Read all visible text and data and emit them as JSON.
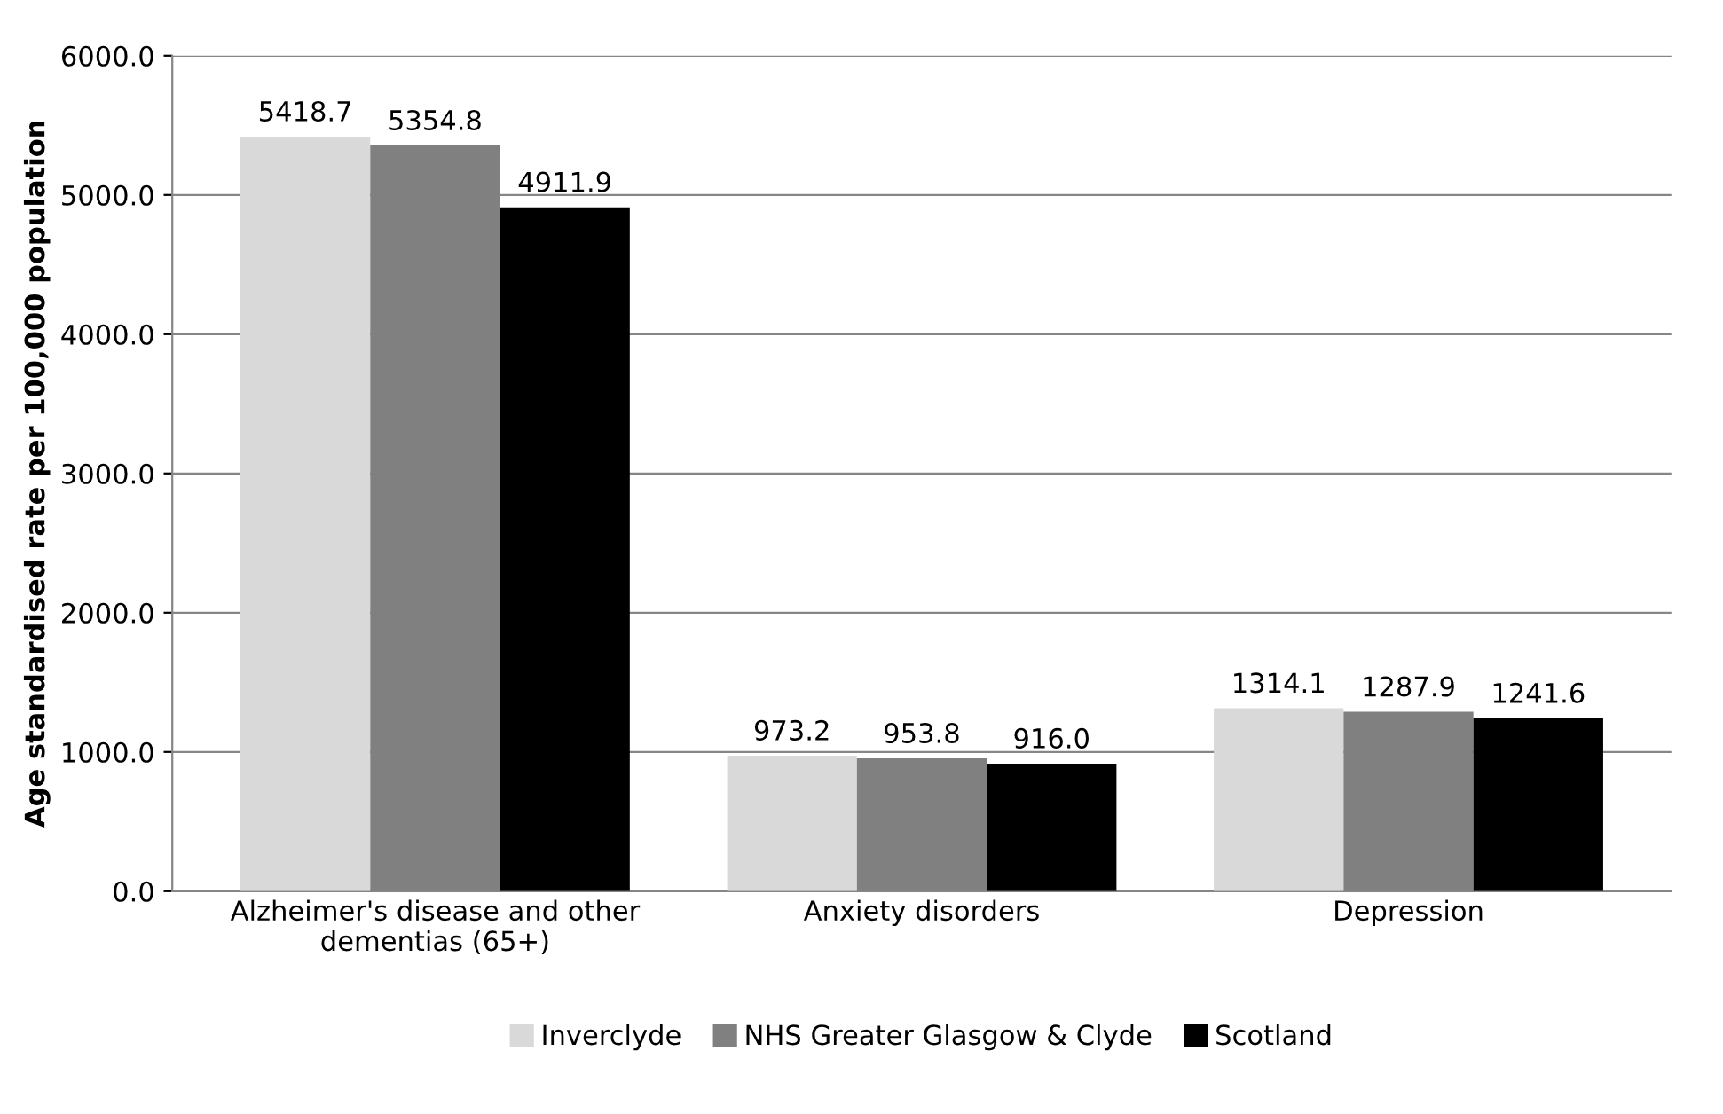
{
  "chart_data": {
    "type": "bar",
    "ylabel": "Age standardised rate per 100,000 population",
    "categories": [
      "Alzheimer's disease and other\ndementias (65+)",
      "Anxiety disorders",
      "Depression"
    ],
    "series": [
      {
        "name": "Inverclyde",
        "color": "#d9d9d9",
        "values": [
          5418.7,
          973.2,
          1314.1
        ],
        "value_labels": [
          "5418.7",
          "973.2",
          "1314.1"
        ]
      },
      {
        "name": "NHS Greater Glasgow & Clyde",
        "color": "#808080",
        "values": [
          5354.8,
          953.8,
          1287.9
        ],
        "value_labels": [
          "5354.8",
          "953.8",
          "1287.9"
        ]
      },
      {
        "name": "Scotland",
        "color": "#000000",
        "values": [
          4911.9,
          916.0,
          1241.6
        ],
        "value_labels": [
          "4911.9",
          "916.0",
          "1241.6"
        ]
      }
    ],
    "ylim": [
      0,
      6000
    ],
    "yticks": [
      {
        "value": 0,
        "label": "0.0"
      },
      {
        "value": 1000,
        "label": "1000.0"
      },
      {
        "value": 2000,
        "label": "2000.0"
      },
      {
        "value": 3000,
        "label": "3000.0"
      },
      {
        "value": 4000,
        "label": "4000.0"
      },
      {
        "value": 5000,
        "label": "5000.0"
      },
      {
        "value": 6000,
        "label": "6000.0"
      }
    ],
    "grid": "y",
    "legend": "bottom"
  }
}
